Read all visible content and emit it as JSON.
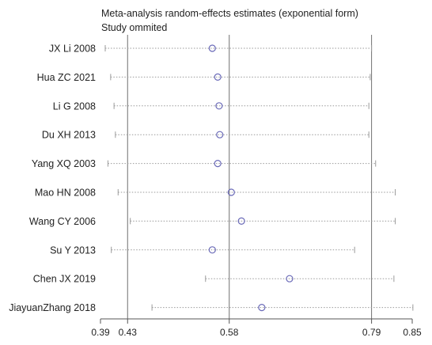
{
  "title_lines": [
    "Meta-analysis random-effects estimates (exponential form)",
    "Study ommited"
  ],
  "chart_data": {
    "type": "forest",
    "title": "Meta-analysis random-effects estimates (exponential form)",
    "subtitle": "Study ommited",
    "xlim": [
      0.39,
      0.85
    ],
    "ticks": [
      {
        "value": 0.39,
        "label": "0.39"
      },
      {
        "value": 0.43,
        "label": "0.43"
      },
      {
        "value": 0.58,
        "label": "0.58"
      },
      {
        "value": 0.79,
        "label": "0.79"
      },
      {
        "value": 0.85,
        "label": "0.85"
      }
    ],
    "reference_lines": [
      0.43,
      0.58,
      0.79
    ],
    "studies": [
      {
        "name": "JX Li 2008",
        "estimate": 0.555,
        "lower": 0.397,
        "upper": 0.79
      },
      {
        "name": "Hua ZC 2021",
        "estimate": 0.563,
        "lower": 0.405,
        "upper": 0.788
      },
      {
        "name": "Li G 2008",
        "estimate": 0.565,
        "lower": 0.41,
        "upper": 0.786
      },
      {
        "name": "Du XH 2013",
        "estimate": 0.566,
        "lower": 0.412,
        "upper": 0.786
      },
      {
        "name": "Yang XQ 2003",
        "estimate": 0.563,
        "lower": 0.401,
        "upper": 0.796
      },
      {
        "name": "Mao HN 2008",
        "estimate": 0.583,
        "lower": 0.416,
        "upper": 0.825
      },
      {
        "name": "Wang CY 2006",
        "estimate": 0.598,
        "lower": 0.434,
        "upper": 0.825
      },
      {
        "name": "Su Y 2013",
        "estimate": 0.555,
        "lower": 0.406,
        "upper": 0.765
      },
      {
        "name": "Chen JX 2019",
        "estimate": 0.669,
        "lower": 0.545,
        "upper": 0.823
      },
      {
        "name": "JiayuanZhang 2018",
        "estimate": 0.628,
        "lower": 0.466,
        "upper": 0.851
      }
    ]
  },
  "colors": {
    "axis": "#555555",
    "ref_line": "#707070",
    "ci_line": "#9a9a9a",
    "marker": "#6a6ab8",
    "text": "#222222"
  }
}
